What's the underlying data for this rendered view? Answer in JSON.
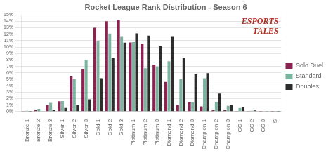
{
  "chart_data": {
    "type": "bar",
    "title": "Rocket League Rank Distribution - Season 6",
    "categories": [
      "Bronze 1",
      "Bronze 2",
      "Bronze 3",
      "Silver 1",
      "Silver 2",
      "Silver 3",
      "Gold 1",
      "Gold 2",
      "Gold 3",
      "Platinum 1",
      "Platinum 2",
      "Platinum 3",
      "Diamond 1",
      "Diamond 2",
      "Diamond 3",
      "Champion 1",
      "Champion 2",
      "Champion 3",
      "GC 1",
      "GC 2",
      "GC 3",
      "S"
    ],
    "series": [
      {
        "name": "Solo Duel",
        "color": "#8b2252",
        "values": [
          0.04,
          0.2,
          1.03,
          1.6,
          5.42,
          6.58,
          13.0,
          14.01,
          14.21,
          10.72,
          10.52,
          7.25,
          4.6,
          1.03,
          1.44,
          0.8,
          0.19,
          0.19,
          0.09,
          0.04,
          0.02,
          0.02
        ]
      },
      {
        "name": "Standard",
        "color": "#7ab5a0",
        "values": [
          0.13,
          0.42,
          1.36,
          1.62,
          5.03,
          8.0,
          10.89,
          12.12,
          11.58,
          10.76,
          6.71,
          6.99,
          7.8,
          5.04,
          1.44,
          5.17,
          1.45,
          0.89,
          0.57,
          0.12,
          0.03,
          0.01
        ]
      },
      {
        "name": "Doubles",
        "color": "#2d2d2d",
        "values": [
          0.02,
          0.06,
          0.2,
          0.57,
          1.03,
          1.89,
          5.16,
          8.28,
          10.68,
          12.14,
          11.79,
          10.11,
          11.58,
          8.27,
          5.76,
          5.94,
          2.8,
          1.01,
          0.71,
          0.18,
          0.04,
          0.01
        ]
      }
    ],
    "ylim": [
      0,
      15
    ],
    "yticks": [
      {
        "value": 0,
        "label": "0%"
      },
      {
        "value": 1,
        "label": "1%"
      },
      {
        "value": 2,
        "label": "2%"
      },
      {
        "value": 3,
        "label": "3%"
      },
      {
        "value": 4,
        "label": "4%"
      },
      {
        "value": 5,
        "label": "5%"
      },
      {
        "value": 6,
        "label": "6%"
      },
      {
        "value": 7,
        "label": "7%"
      },
      {
        "value": 8,
        "label": "8%"
      },
      {
        "value": 9,
        "label": "9%"
      },
      {
        "value": 10,
        "label": "10%"
      },
      {
        "value": 11,
        "label": "11%"
      },
      {
        "value": 12,
        "label": "12%"
      },
      {
        "value": 13,
        "label": "13%"
      },
      {
        "value": 14,
        "label": "14%"
      },
      {
        "value": 15,
        "label": "15%"
      }
    ],
    "grid": true,
    "legend": "right",
    "annotations": [
      {
        "text": "ESPORTS",
        "color": "#b03020"
      },
      {
        "text": "TALES",
        "color": "#b03020"
      }
    ]
  }
}
